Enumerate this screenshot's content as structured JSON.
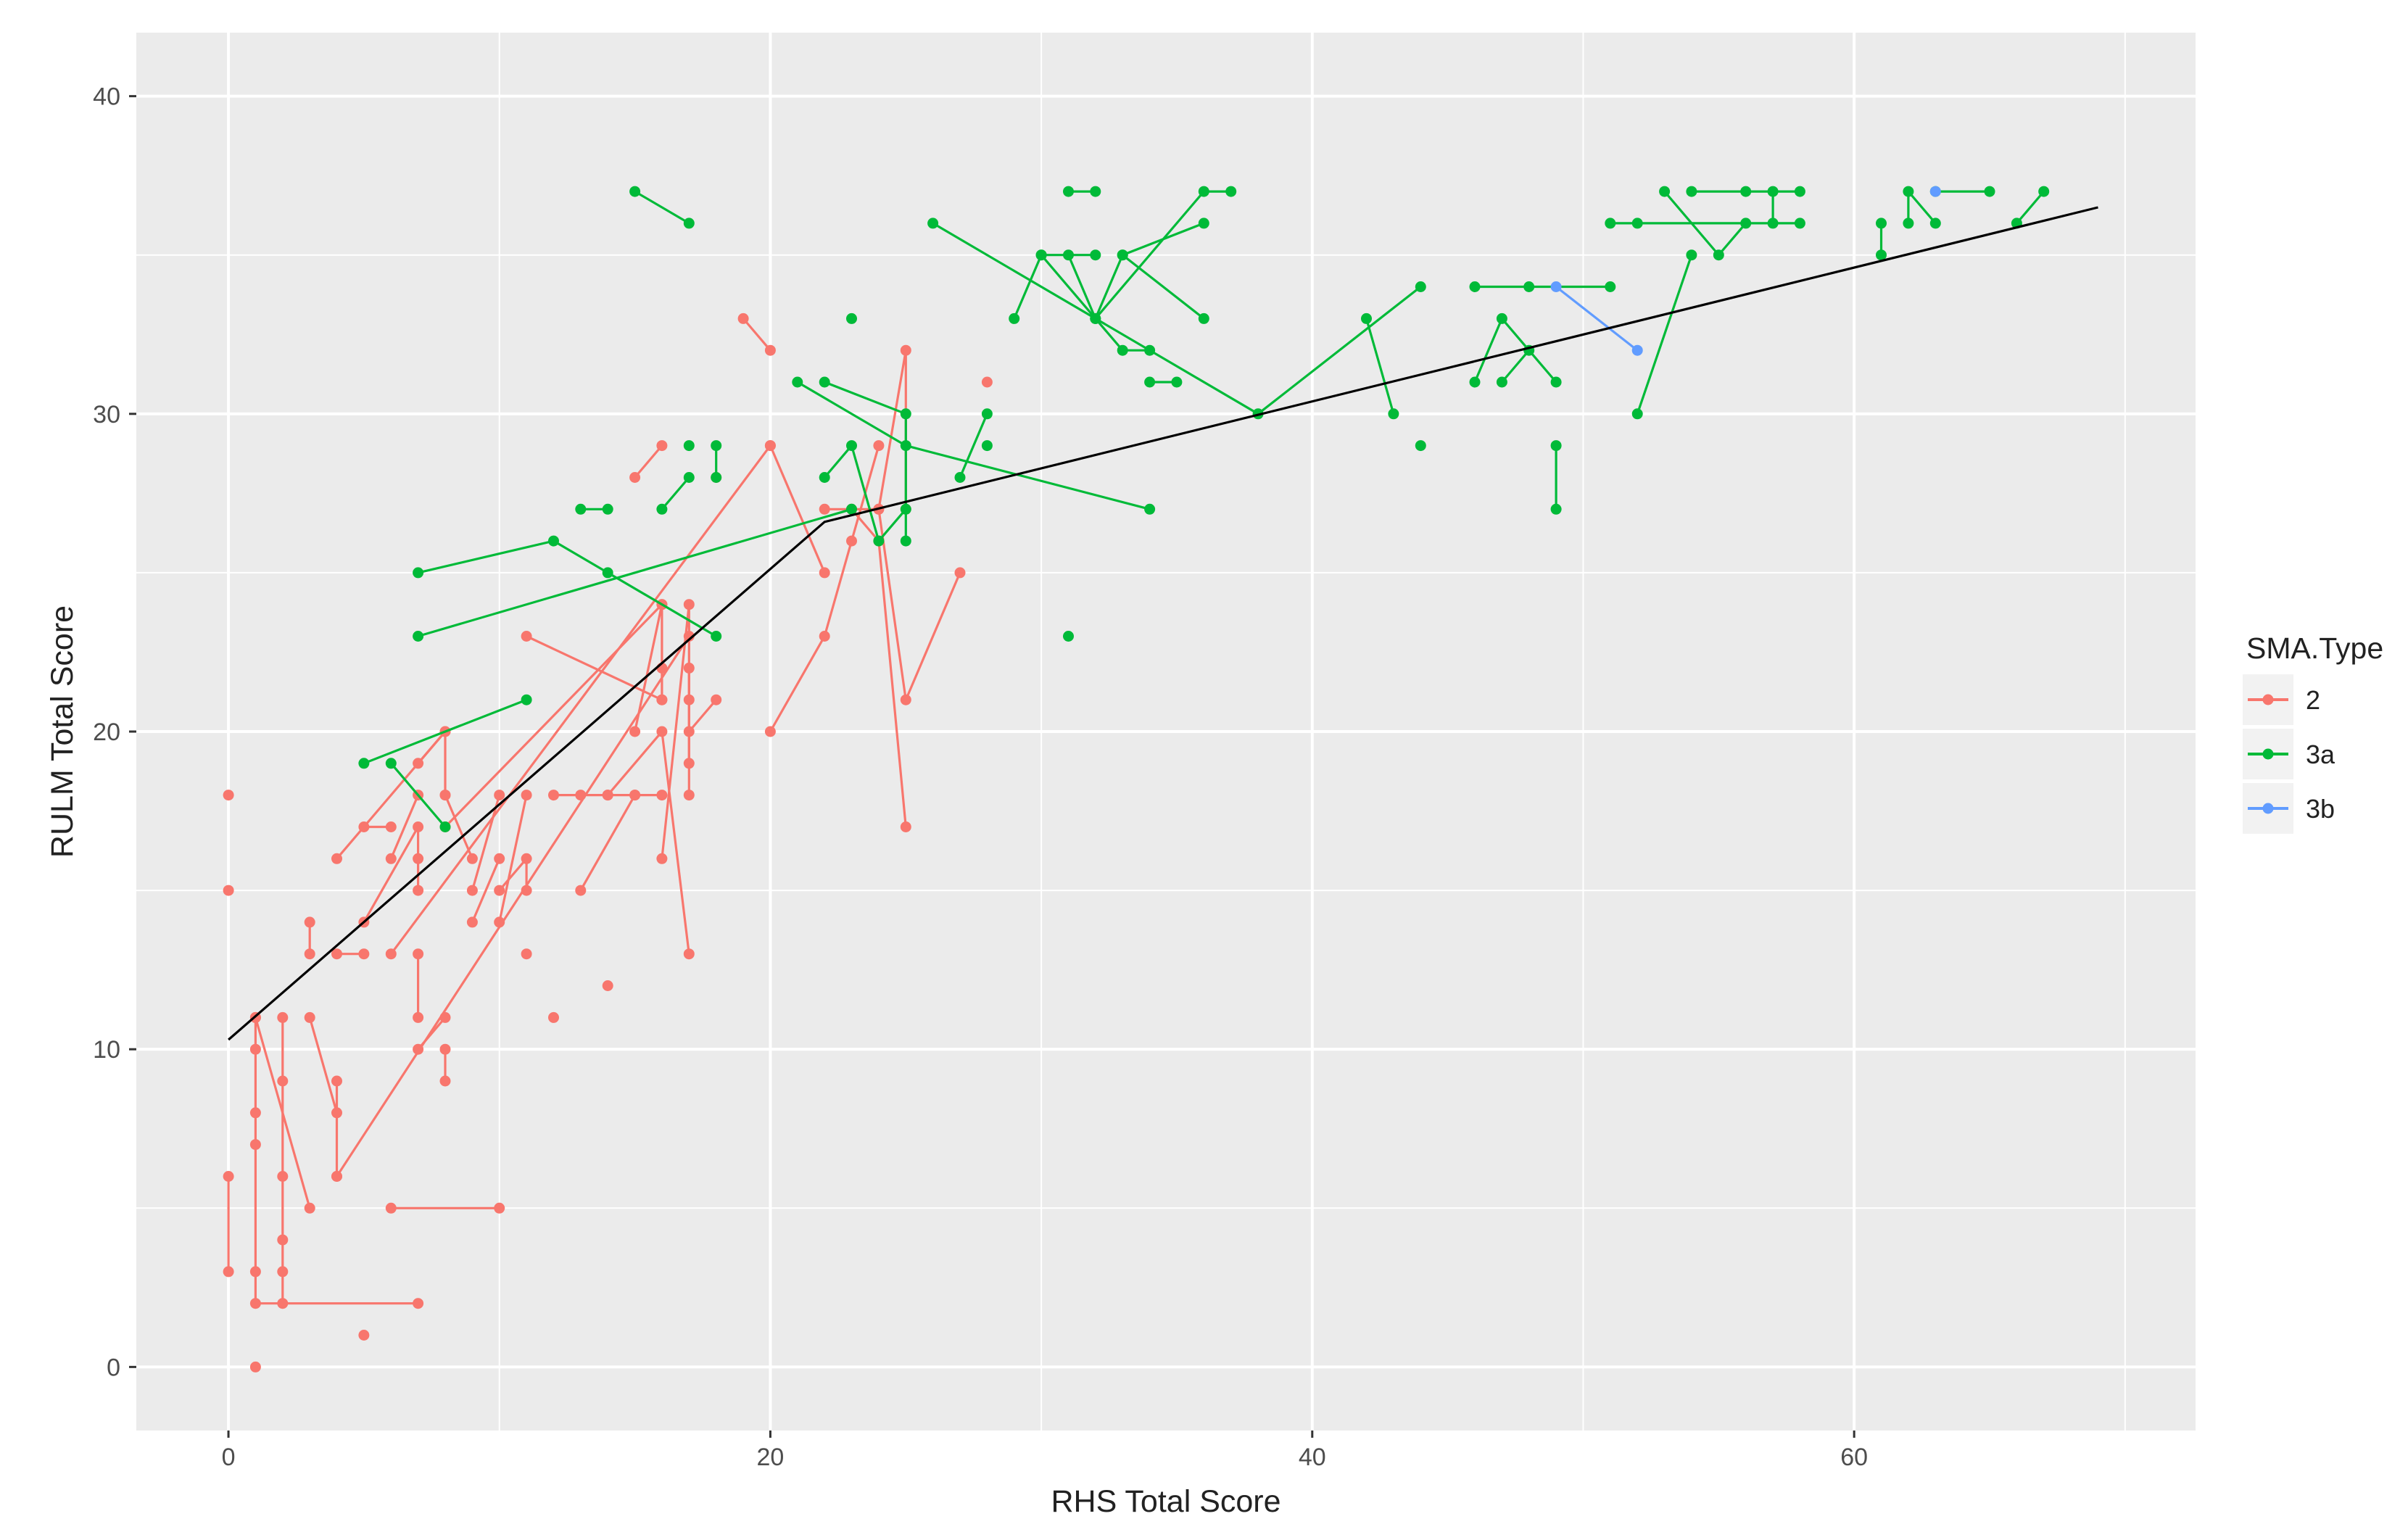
{
  "chart_data": {
    "type": "scatter",
    "title": "",
    "xlabel": "RHS Total Score",
    "ylabel": "RULM Total Score",
    "xlim": [
      -3.4,
      72.6
    ],
    "ylim": [
      -2,
      42
    ],
    "x_ticks": [
      0,
      20,
      40,
      60
    ],
    "y_ticks": [
      0,
      10,
      20,
      30,
      40
    ],
    "grid": true,
    "legend": {
      "title": "SMA.Type",
      "position": "right",
      "entries": [
        {
          "label": "2",
          "color": "#F8766D"
        },
        {
          "label": "3a",
          "color": "#00BA38"
        },
        {
          "label": "3b",
          "color": "#619CFF"
        }
      ]
    },
    "colors": {
      "panel": "#EBEBEB",
      "grid": "#FFFFFF",
      "fit_line": "#000000",
      "text": "#4D4D4D"
    },
    "fit_line": {
      "x": [
        0,
        22,
        69
      ],
      "y": [
        10.3,
        26.6,
        36.5
      ]
    },
    "series": [
      {
        "name": "2",
        "color": "#F8766D",
        "trajectories": [
          [
            [
              0,
              6
            ],
            [
              0,
              3
            ]
          ],
          [
            [
              0,
              18
            ]
          ],
          [
            [
              0,
              15
            ]
          ],
          [
            [
              1,
              11
            ],
            [
              1,
              10
            ],
            [
              1,
              8
            ],
            [
              1,
              7
            ],
            [
              1,
              3
            ],
            [
              1,
              2
            ],
            [
              7,
              2
            ]
          ],
          [
            [
              1,
              0
            ]
          ],
          [
            [
              2,
              11
            ],
            [
              2,
              9
            ],
            [
              2,
              6
            ],
            [
              2,
              4
            ],
            [
              2,
              3
            ],
            [
              2,
              2
            ]
          ],
          [
            [
              1,
              11
            ],
            [
              3,
              5
            ]
          ],
          [
            [
              3,
              11
            ],
            [
              4,
              8
            ]
          ],
          [
            [
              4,
              9
            ],
            [
              4,
              6
            ]
          ],
          [
            [
              3,
              14
            ],
            [
              3,
              13
            ]
          ],
          [
            [
              4,
              16
            ],
            [
              8,
              20
            ]
          ],
          [
            [
              4,
              13
            ],
            [
              5,
              13
            ]
          ],
          [
            [
              5,
              14
            ],
            [
              7,
              17
            ],
            [
              7,
              16
            ],
            [
              7,
              15
            ]
          ],
          [
            [
              5,
              17
            ],
            [
              6,
              17
            ]
          ],
          [
            [
              5,
              1
            ]
          ],
          [
            [
              6,
              16
            ],
            [
              7,
              18
            ]
          ],
          [
            [
              6,
              5
            ],
            [
              10,
              5
            ]
          ],
          [
            [
              7,
              19
            ],
            [
              8,
              20
            ],
            [
              8,
              18
            ]
          ],
          [
            [
              7,
              13
            ],
            [
              7,
              11
            ]
          ],
          [
            [
              7,
              10
            ],
            [
              8,
              11
            ]
          ],
          [
            [
              8,
              10
            ],
            [
              8,
              9
            ]
          ],
          [
            [
              8,
              18
            ],
            [
              9,
              16
            ]
          ],
          [
            [
              9,
              15
            ],
            [
              10,
              18
            ]
          ],
          [
            [
              9,
              14
            ],
            [
              10,
              16
            ]
          ],
          [
            [
              10,
              15
            ],
            [
              11,
              16
            ],
            [
              11,
              15
            ]
          ],
          [
            [
              10,
              14
            ],
            [
              11,
              18
            ]
          ],
          [
            [
              11,
              13
            ]
          ],
          [
            [
              11,
              23
            ],
            [
              16,
              21
            ]
          ],
          [
            [
              12,
              11
            ]
          ],
          [
            [
              12,
              18
            ],
            [
              13,
              18
            ],
            [
              14,
              18
            ],
            [
              15,
              18
            ],
            [
              16,
              18
            ]
          ],
          [
            [
              13,
              15
            ],
            [
              15,
              18
            ]
          ],
          [
            [
              14,
              12
            ]
          ],
          [
            [
              14,
              18
            ],
            [
              16,
              20
            ],
            [
              17,
              13
            ]
          ],
          [
            [
              15,
              28
            ],
            [
              16,
              29
            ]
          ],
          [
            [
              15,
              20
            ],
            [
              16,
              24
            ],
            [
              16,
              22
            ],
            [
              16,
              21
            ]
          ],
          [
            [
              16,
              16
            ],
            [
              17,
              24
            ],
            [
              17,
              21
            ],
            [
              17,
              19
            ]
          ],
          [
            [
              17,
              22
            ],
            [
              17,
              18
            ]
          ],
          [
            [
              17,
              20
            ],
            [
              18,
              21
            ]
          ],
          [
            [
              18,
              28
            ]
          ],
          [
            [
              19,
              33
            ],
            [
              20,
              32
            ]
          ],
          [
            [
              20,
              29
            ],
            [
              22,
              25
            ]
          ],
          [
            [
              20,
              20
            ],
            [
              22,
              23
            ],
            [
              23,
              26
            ],
            [
              24,
              29
            ]
          ],
          [
            [
              22,
              27
            ],
            [
              24,
              27
            ],
            [
              25,
              32
            ],
            [
              25,
              27
            ]
          ],
          [
            [
              23,
              27
            ],
            [
              24,
              26
            ],
            [
              25,
              17
            ]
          ],
          [
            [
              24,
              27
            ],
            [
              25,
              21
            ],
            [
              27,
              25
            ]
          ],
          [
            [
              28,
              31
            ]
          ],
          [
            [
              6,
              13
            ],
            [
              20,
              29
            ]
          ],
          [
            [
              8,
              17
            ],
            [
              16,
              24
            ]
          ],
          [
            [
              4,
              6
            ],
            [
              17,
              23
            ]
          ]
        ]
      },
      {
        "name": "3a",
        "color": "#00BA38",
        "trajectories": [
          [
            [
              5,
              19
            ],
            [
              11,
              21
            ]
          ],
          [
            [
              6,
              19
            ],
            [
              8,
              17
            ]
          ],
          [
            [
              7,
              25
            ],
            [
              12,
              26
            ],
            [
              14,
              25
            ],
            [
              18,
              23
            ]
          ],
          [
            [
              7,
              23
            ],
            [
              23,
              27
            ]
          ],
          [
            [
              13,
              27
            ],
            [
              14,
              27
            ]
          ],
          [
            [
              15,
              37
            ],
            [
              17,
              36
            ]
          ],
          [
            [
              16,
              27
            ],
            [
              17,
              28
            ]
          ],
          [
            [
              17,
              29
            ]
          ],
          [
            [
              18,
              29
            ],
            [
              18,
              28
            ]
          ],
          [
            [
              21,
              31
            ],
            [
              25,
              29
            ],
            [
              34,
              27
            ]
          ],
          [
            [
              22,
              31
            ],
            [
              25,
              30
            ],
            [
              25,
              26
            ]
          ],
          [
            [
              22,
              28
            ],
            [
              23,
              29
            ],
            [
              24,
              26
            ],
            [
              25,
              27
            ]
          ],
          [
            [
              23,
              33
            ]
          ],
          [
            [
              26,
              36
            ],
            [
              38,
              30
            ],
            [
              44,
              34
            ]
          ],
          [
            [
              27,
              28
            ],
            [
              28,
              30
            ]
          ],
          [
            [
              28,
              29
            ]
          ],
          [
            [
              29,
              33
            ],
            [
              30,
              35
            ],
            [
              32,
              35
            ]
          ],
          [
            [
              30,
              35
            ],
            [
              33,
              32
            ],
            [
              34,
              32
            ]
          ],
          [
            [
              31,
              37
            ],
            [
              32,
              37
            ]
          ],
          [
            [
              31,
              35
            ],
            [
              32,
              33
            ],
            [
              33,
              35
            ],
            [
              36,
              36
            ]
          ],
          [
            [
              32,
              33
            ],
            [
              36,
              37
            ],
            [
              37,
              37
            ]
          ],
          [
            [
              33,
              35
            ],
            [
              36,
              33
            ]
          ],
          [
            [
              34,
              31
            ],
            [
              35,
              31
            ]
          ],
          [
            [
              31,
              23
            ]
          ],
          [
            [
              42,
              33
            ],
            [
              43,
              30
            ]
          ],
          [
            [
              44,
              29
            ]
          ],
          [
            [
              47,
              31
            ],
            [
              48,
              32
            ]
          ],
          [
            [
              46,
              34
            ],
            [
              48,
              34
            ],
            [
              51,
              34
            ]
          ],
          [
            [
              46,
              31
            ],
            [
              47,
              33
            ],
            [
              49,
              31
            ]
          ],
          [
            [
              49,
              29
            ],
            [
              49,
              27
            ]
          ],
          [
            [
              51,
              36
            ],
            [
              52,
              36
            ],
            [
              58,
              36
            ]
          ],
          [
            [
              52,
              30
            ],
            [
              54,
              35
            ]
          ],
          [
            [
              53,
              37
            ],
            [
              55,
              35
            ],
            [
              56,
              36
            ]
          ],
          [
            [
              54,
              37
            ],
            [
              56,
              37
            ],
            [
              58,
              37
            ]
          ],
          [
            [
              57,
              36
            ],
            [
              57,
              37
            ]
          ],
          [
            [
              61,
              36
            ],
            [
              61,
              35
            ]
          ],
          [
            [
              62,
              36
            ],
            [
              62,
              37
            ],
            [
              63,
              36
            ]
          ],
          [
            [
              63,
              37
            ],
            [
              65,
              37
            ]
          ],
          [
            [
              66,
              36
            ],
            [
              67,
              37
            ]
          ]
        ]
      },
      {
        "name": "3b",
        "color": "#619CFF",
        "trajectories": [
          [
            [
              49,
              34
            ],
            [
              52,
              32
            ]
          ],
          [
            [
              63,
              37
            ]
          ]
        ]
      }
    ]
  }
}
